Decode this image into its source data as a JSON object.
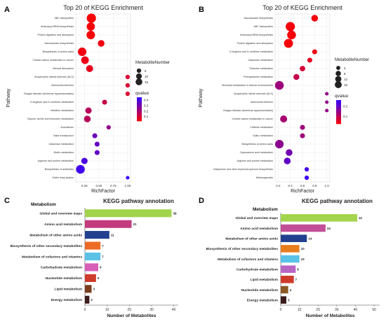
{
  "figure": {
    "panel_labels": [
      "A",
      "B",
      "C",
      "D"
    ]
  },
  "chart_data": [
    {
      "panel": "A",
      "type": "scatter",
      "title": "Top 20 of KEGG Enrichment",
      "xlabel": "RichFactor",
      "ylabel": "Pathway",
      "xlim": [
        0.1,
        1.05
      ],
      "xticks": [
        "0.25",
        "0.50",
        "0.75",
        "1.00"
      ],
      "xtick_values": [
        0.25,
        0.5,
        0.75,
        1.0
      ],
      "grid": true,
      "legend": {
        "size_title": "MetaboliteNumber",
        "size_labels": [
          "5",
          "10",
          "15"
        ],
        "size_values": [
          5,
          10,
          15
        ],
        "color_title": "qvalue",
        "color_labels": [
          "0.4",
          "0.3",
          "0.2",
          "0.1"
        ],
        "color_values": [
          0.4,
          0.3,
          0.2,
          0.1
        ],
        "color_range": [
          0.02,
          0.45
        ],
        "low_color": "#ff0000",
        "high_color": "#3300ff",
        "placement": "right"
      },
      "points": [
        {
          "pathway": "ABC transporters",
          "x": 0.37,
          "size": 16,
          "q": 0.03
        },
        {
          "pathway": "Aminoacyl-tRNA biosynthesis",
          "x": 0.36,
          "size": 12,
          "q": 0.03
        },
        {
          "pathway": "Protein digestion and absorption",
          "x": 0.36,
          "size": 13,
          "q": 0.03
        },
        {
          "pathway": "Monobactam biosynthesis",
          "x": 0.54,
          "size": 7,
          "q": 0.05
        },
        {
          "pathway": "Biosynthesis of amino acids",
          "x": 0.21,
          "size": 13,
          "q": 0.05
        },
        {
          "pathway": "Central carbon metabolism in cancer",
          "x": 0.26,
          "size": 10,
          "q": 0.06
        },
        {
          "pathway": "Mineral absorption",
          "x": 0.34,
          "size": 8,
          "q": 0.07
        },
        {
          "pathway": "Amyotrophic lateral sclerosis (ALS)",
          "x": 1.0,
          "size": 2,
          "q": 0.1
        },
        {
          "pathway": "Salmonella infection",
          "x": 1.0,
          "size": 2,
          "q": 0.1
        },
        {
          "pathway": "Chagas disease (American trypanosomiasis)",
          "x": 1.0,
          "size": 2,
          "q": 0.1
        },
        {
          "pathway": "D-Arginine and D-ornithine metabolism",
          "x": 0.6,
          "size": 3,
          "q": 0.14
        },
        {
          "pathway": "Histidine metabolism",
          "x": 0.32,
          "size": 6,
          "q": 0.17
        },
        {
          "pathway": "Glycine, serine and threonine metabolism",
          "x": 0.3,
          "size": 7,
          "q": 0.17
        },
        {
          "pathway": "Arachidonic",
          "x": 0.67,
          "size": 2,
          "q": 0.25
        },
        {
          "pathway": "Taste transduction",
          "x": 0.43,
          "size": 3,
          "q": 0.33
        },
        {
          "pathway": "Galactose metabolism",
          "x": 0.47,
          "size": 3,
          "q": 0.35
        },
        {
          "pathway": "Biotin metabolism",
          "x": 0.47,
          "size": 3,
          "q": 0.35
        },
        {
          "pathway": "Arginine and proline metabolism",
          "x": 0.25,
          "size": 6,
          "q": 0.4
        },
        {
          "pathway": "Biosynthesis of antibiotics",
          "x": 0.18,
          "size": 14,
          "q": 0.42
        },
        {
          "pathway": "Sulfur relay system",
          "x": 1.0,
          "size": 1,
          "q": 0.44
        }
      ]
    },
    {
      "panel": "B",
      "type": "scatter",
      "title": "Top 20 of KEGG Enrichment",
      "xlabel": "RichFactor",
      "ylabel": "Pathway",
      "xlim": [
        0.15,
        1.05
      ],
      "xticks": [
        "0.2",
        "0.4",
        "0.6",
        "0.8",
        "1.0"
      ],
      "xtick_values": [
        0.2,
        0.4,
        0.6,
        0.8,
        1.0
      ],
      "grid": true,
      "legend": {
        "size_title": "MetaboliteNumber",
        "size_labels": [
          "4",
          "8",
          "12",
          "16"
        ],
        "size_values": [
          4,
          8,
          12,
          16
        ],
        "color_title": "qvalue",
        "color_labels": [
          "0.2",
          "0.1"
        ],
        "color_values": [
          0.2,
          0.1
        ],
        "color_range": [
          0.03,
          0.26
        ],
        "low_color": "#ff0000",
        "high_color": "#3300ff",
        "placement": "right"
      },
      "points": [
        {
          "pathway": "Monobactam biosynthesis",
          "x": 0.8,
          "size": 7,
          "q": 0.04
        },
        {
          "pathway": "ABC transporters",
          "x": 0.4,
          "size": 16,
          "q": 0.04
        },
        {
          "pathway": "Aminoacyl-tRNA biosynthesis",
          "x": 0.42,
          "size": 14,
          "q": 0.04
        },
        {
          "pathway": "Protein digestion and absorption",
          "x": 0.37,
          "size": 15,
          "q": 0.04
        },
        {
          "pathway": "D-Arginine and D-ornithine metabolism",
          "x": 0.8,
          "size": 3,
          "q": 0.05
        },
        {
          "pathway": "Galactose metabolism",
          "x": 0.72,
          "size": 3,
          "q": 0.06
        },
        {
          "pathway": "Thiamine metabolism",
          "x": 0.6,
          "size": 4,
          "q": 0.08
        },
        {
          "pathway": "Phenylalanine metabolism",
          "x": 0.5,
          "size": 5,
          "q": 0.1
        },
        {
          "pathway": "Microbial metabolism in diverse environments",
          "x": 0.22,
          "size": 14,
          "q": 0.14
        },
        {
          "pathway": "Amyotrophic lateral sclerosis (ALS)",
          "x": 1.0,
          "size": 1,
          "q": 0.15
        },
        {
          "pathway": "Salmonella infection",
          "x": 1.0,
          "size": 1,
          "q": 0.15
        },
        {
          "pathway": "Chagas disease (American trypanosomiasis)",
          "x": 1.0,
          "size": 1,
          "q": 0.15
        },
        {
          "pathway": "Central carbon metabolism in cancer",
          "x": 0.29,
          "size": 8,
          "q": 0.13
        },
        {
          "pathway": "Caffeine metabolism",
          "x": 0.6,
          "size": 3,
          "q": 0.14
        },
        {
          "pathway": "Sulfur metabolism",
          "x": 0.6,
          "size": 3,
          "q": 0.14
        },
        {
          "pathway": "Biosynthesis of amino acids",
          "x": 0.22,
          "size": 13,
          "q": 0.16
        },
        {
          "pathway": "Cyanoamino acid metabolism",
          "x": 0.38,
          "size": 7,
          "q": 0.19
        },
        {
          "pathway": "Arginine and proline metabolism",
          "x": 0.35,
          "size": 7,
          "q": 0.21
        },
        {
          "pathway": "Ubiquinone and other terpenoid-quinone biosynthesis",
          "x": 0.67,
          "size": 2,
          "q": 0.24
        },
        {
          "pathway": "Melanogenesis",
          "x": 0.67,
          "size": 2,
          "q": 0.25
        }
      ]
    },
    {
      "panel": "C",
      "type": "bar",
      "orientation": "horizontal",
      "title": "KEGG pathway annotation",
      "xlabel": "Number of Metabolites",
      "legend_title": "Metabolism",
      "xlim": [
        0,
        42
      ],
      "xticks": [
        "0",
        "10",
        "20",
        "30",
        "40"
      ],
      "xtick_values": [
        0,
        10,
        20,
        30,
        40
      ],
      "categories": [
        "Global and overview maps",
        "Amino acid metabolism",
        "Metabolism of other amino acids",
        "Biosynthesis of other secondary metabolites",
        "Metabolism of cofactors and vitamins",
        "Carbohydrate metabolism",
        "Nucleotide metabolism",
        "Lipid metabolism",
        "Energy metabolism"
      ],
      "values": [
        39,
        21,
        11,
        7,
        7,
        6,
        5,
        3,
        2
      ],
      "value_labels": [
        "39",
        "21",
        "11",
        "7",
        "7",
        "6",
        "5",
        "3",
        "2"
      ],
      "colors": [
        "#a3d44d",
        "#c33a7e",
        "#22408f",
        "#ec6c25",
        "#5bc2e7",
        "#d85fb7",
        "#cf3b2a",
        "#7a3d1e",
        "#3b1b1b"
      ]
    },
    {
      "panel": "D",
      "type": "bar",
      "orientation": "horizontal",
      "title": "KEGG pathway annotation",
      "xlabel": "Number of Metabolites",
      "legend_title": "Metabolism",
      "xlim": [
        0,
        53
      ],
      "xticks": [
        "0",
        "10",
        "20",
        "30",
        "40",
        "50"
      ],
      "xtick_values": [
        0,
        10,
        20,
        30,
        40,
        50
      ],
      "categories": [
        "Global and overview maps",
        "Amino acid metabolism",
        "Metabolism of other amino acids",
        "Biosynthesis of other secondary metabolites",
        "Metabolism of cofactors and vitamins",
        "Carbohydrate metabolism",
        "Lipid metabolism",
        "Nucleotide metabolism",
        "Energy metabolism"
      ],
      "values": [
        41,
        24,
        14,
        10,
        10,
        8,
        7,
        4,
        3
      ],
      "value_labels": [
        "41",
        "24",
        "14",
        "10",
        "10",
        "8",
        "7",
        "4",
        "3"
      ],
      "colors": [
        "#a3d44d",
        "#c04f97",
        "#22408f",
        "#e87d1e",
        "#5bc2e7",
        "#b865c4",
        "#cf3b2a",
        "#8a5a22",
        "#3b1b1b"
      ]
    }
  ]
}
